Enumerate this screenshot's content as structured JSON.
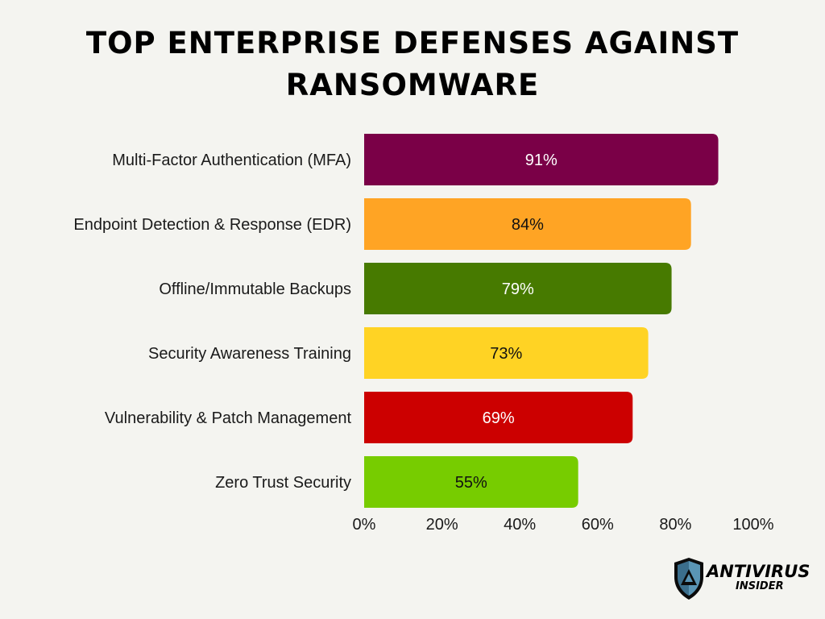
{
  "chart_data": {
    "type": "bar",
    "orientation": "horizontal",
    "title": "TOP ENTERPRISE DEFENSES AGAINST RANSOMWARE",
    "categories": [
      "Multi-Factor Authentication (MFA)",
      "Endpoint Detection & Response (EDR)",
      "Offline/Immutable Backups",
      "Security Awareness Training",
      "Vulnerability & Patch Management",
      "Zero Trust Security"
    ],
    "values": [
      91,
      84,
      79,
      73,
      69,
      55
    ],
    "value_labels": [
      "91%",
      "84%",
      "79%",
      "73%",
      "69%",
      "55%"
    ],
    "bar_colors": [
      "#7a0047",
      "#ffa424",
      "#477a00",
      "#ffd324",
      "#cc0000",
      "#77cc00"
    ],
    "label_colors": [
      "#ffffff",
      "#111111",
      "#ffffff",
      "#111111",
      "#ffffff",
      "#111111"
    ],
    "xlim": [
      0,
      100
    ],
    "x_ticks": [
      0,
      20,
      40,
      60,
      80,
      100
    ],
    "x_tick_labels": [
      "0%",
      "20%",
      "40%",
      "60%",
      "80%",
      "100%"
    ],
    "grid": false,
    "legend": "none"
  },
  "branding": {
    "logo_word": "ANTIVIRUS",
    "logo_sub": "INSIDER",
    "icon": "shield-icon"
  }
}
